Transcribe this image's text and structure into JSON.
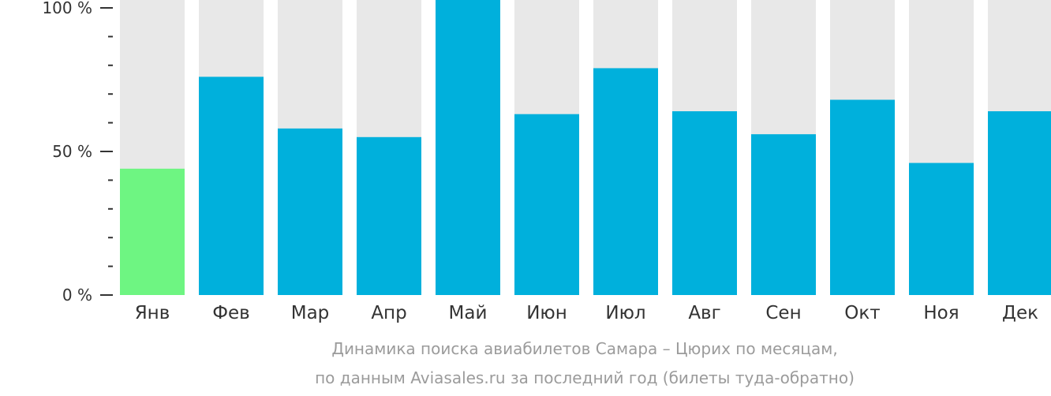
{
  "chart_data": {
    "type": "bar",
    "categories": [
      "Янв",
      "Фев",
      "Мар",
      "Апр",
      "Май",
      "Июн",
      "Июл",
      "Авг",
      "Сен",
      "Окт",
      "Ноя",
      "Дек"
    ],
    "values": [
      44,
      76,
      58,
      55,
      100,
      63,
      79,
      64,
      56,
      68,
      46,
      64
    ],
    "ylim": [
      0,
      100
    ],
    "y_ticks": [
      {
        "value": 0,
        "label": "0 %"
      },
      {
        "value": 50,
        "label": "50 %"
      },
      {
        "value": 100,
        "label": "100 %"
      }
    ],
    "y_minor_step": 10,
    "highlight_index": 0,
    "colors": {
      "bar": "#00b0dc",
      "highlight": "#6ef582",
      "background_bar": "#e8e8e8",
      "axis": "#333333"
    },
    "caption": [
      "Динамика поиска авиабилетов Самара – Цюрих по месяцам,",
      "по данным Aviasales.ru за последний год (билеты туда-обратно)"
    ]
  }
}
